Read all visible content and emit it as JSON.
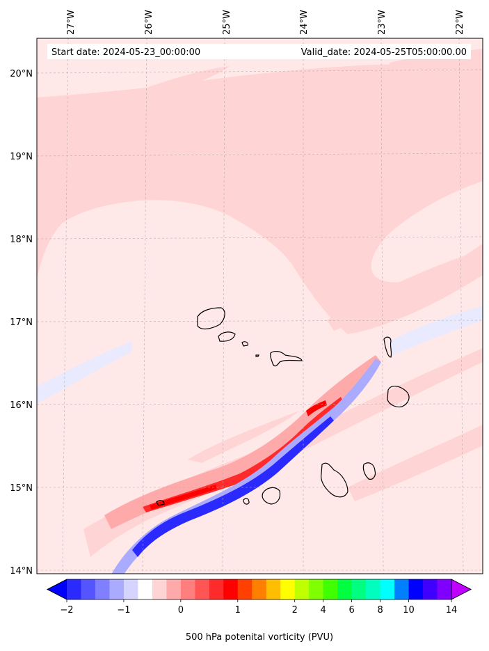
{
  "info": {
    "start_date": "Start date: 2024-05-23_00:00:00",
    "valid_date": "Valid_date: 2024-05-25T05:00:00.00"
  },
  "axes": {
    "lon_labels": [
      "27°W",
      "26°W",
      "25°W",
      "24°W",
      "23°W",
      "22°W"
    ],
    "lat_labels": [
      "20°N",
      "19°N",
      "18°N",
      "17°N",
      "16°N",
      "15°N",
      "14°N"
    ]
  },
  "colorbar": {
    "label": "500 hPa potenital vorticity (PVU)",
    "ticks": [
      "−2",
      "−1",
      "0",
      "1",
      "2",
      "4",
      "6",
      "8",
      "10",
      "14"
    ],
    "colors": [
      "#0000ff",
      "#2a2aff",
      "#5555ff",
      "#7f7fff",
      "#aaaaff",
      "#d4d4ff",
      "#ffffff",
      "#ffd4d4",
      "#ffaaaa",
      "#ff7f7f",
      "#ff5555",
      "#ff2a2a",
      "#ff0000",
      "#ff4000",
      "#ff8000",
      "#ffbf00",
      "#ffff00",
      "#bfff00",
      "#80ff00",
      "#40ff00",
      "#00ff40",
      "#00ff80",
      "#00ffbf",
      "#00ffff",
      "#0080ff",
      "#0000ff",
      "#4000ff",
      "#8000ff",
      "#bf00ff"
    ],
    "extend": "both"
  },
  "map": {
    "background": "#ffe8e8",
    "light_pink": "#ffd4d4",
    "mid_pink": "#ffaaaa",
    "red": "#ff0000",
    "light_blue": "#e6e6ff",
    "blue": "#0000ff",
    "coastline": "#000000"
  }
}
